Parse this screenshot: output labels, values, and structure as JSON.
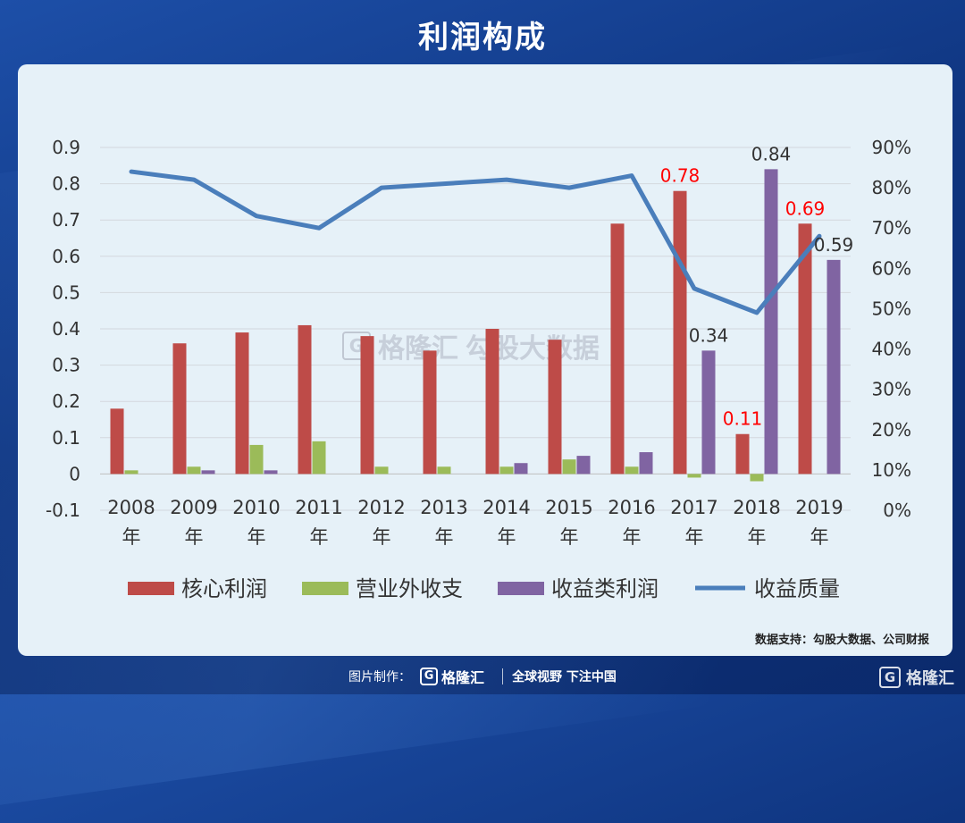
{
  "title": "利润构成",
  "source": "数据支持：勾股大数据、公司财报",
  "watermark": {
    "brand": "格隆汇",
    "text": "勾股大数据"
  },
  "footer": {
    "prefix": "图片制作：",
    "brand": "格隆汇",
    "slogan": "全球视野 下注中国"
  },
  "corner_brand": "格隆汇",
  "colors": {
    "core": "#be4b48",
    "other": "#9bbb59",
    "invest": "#8064a2",
    "quality": "#4a7ebb",
    "highlight": "#ff0000",
    "label": "#333333"
  },
  "chart_data": {
    "type": "bar",
    "categories": [
      "2008年",
      "2009年",
      "2010年",
      "2011年",
      "2012年",
      "2013年",
      "2014年",
      "2015年",
      "2016年",
      "2017年",
      "2018年",
      "2019年"
    ],
    "series": [
      {
        "name": "核心利润",
        "type": "bar",
        "axis": "left",
        "values": [
          0.18,
          0.36,
          0.39,
          0.41,
          0.38,
          0.34,
          0.4,
          0.37,
          0.69,
          0.78,
          0.11,
          0.69
        ]
      },
      {
        "name": "营业外收支",
        "type": "bar",
        "axis": "left",
        "values": [
          0.01,
          0.02,
          0.08,
          0.09,
          0.02,
          0.02,
          0.02,
          0.04,
          0.02,
          -0.01,
          -0.02,
          0.0
        ]
      },
      {
        "name": "收益类利润",
        "type": "bar",
        "axis": "left",
        "values": [
          0.0,
          0.01,
          0.01,
          0.0,
          0.0,
          0.0,
          0.03,
          0.05,
          0.06,
          0.34,
          0.84,
          0.59
        ]
      },
      {
        "name": "收益质量",
        "type": "line",
        "axis": "right",
        "values": [
          84,
          82,
          73,
          70,
          80,
          81,
          82,
          80,
          83,
          55,
          49,
          68
        ]
      }
    ],
    "ylim": [
      -0.1,
      0.9
    ],
    "yticks": [
      "-0.1",
      "0",
      "0.1",
      "0.2",
      "0.3",
      "0.4",
      "0.5",
      "0.6",
      "0.7",
      "0.8",
      "0.9"
    ],
    "y2lim": [
      0,
      90
    ],
    "y2ticks": [
      "0%",
      "10%",
      "20%",
      "30%",
      "40%",
      "50%",
      "60%",
      "70%",
      "80%",
      "90%"
    ],
    "data_labels": [
      {
        "series": 0,
        "index": 9,
        "text": "0.78",
        "highlight": true
      },
      {
        "series": 0,
        "index": 10,
        "text": "0.11",
        "highlight": true
      },
      {
        "series": 0,
        "index": 11,
        "text": "0.69",
        "highlight": true
      },
      {
        "series": 2,
        "index": 9,
        "text": "0.34",
        "highlight": false
      },
      {
        "series": 2,
        "index": 10,
        "text": "0.84",
        "highlight": false
      },
      {
        "series": 2,
        "index": 11,
        "text": "0.59",
        "highlight": false
      }
    ],
    "grid": true,
    "legend": "bottom"
  }
}
